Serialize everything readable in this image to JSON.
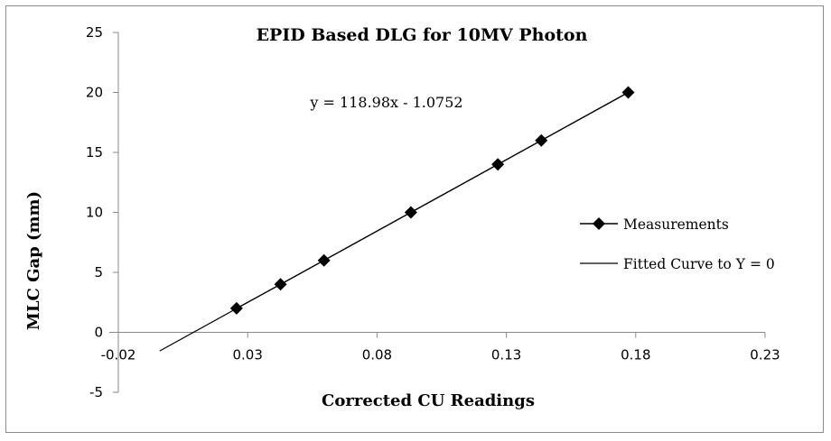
{
  "chart_data": {
    "type": "scatter",
    "title": "EPID Based DLG for 10MV Photon",
    "xlabel": "Corrected CU Readings",
    "ylabel": "MLC Gap (mm)",
    "xlim": [
      -0.02,
      0.23
    ],
    "ylim": [
      -5,
      25
    ],
    "x_ticks": [
      -0.02,
      0.03,
      0.08,
      0.13,
      0.18,
      0.23
    ],
    "x_tick_labels": [
      "-0.02",
      "0.03",
      "0.08",
      "0.13",
      "0.18",
      "0.23"
    ],
    "y_ticks": [
      -5,
      0,
      5,
      10,
      15,
      20,
      25
    ],
    "y_tick_labels": [
      "-5",
      "0",
      "5",
      "10",
      "15",
      "20",
      "25"
    ],
    "grid": false,
    "legend_position": "right",
    "series": [
      {
        "name": "Measurements",
        "marker": "diamond",
        "color": "#000000",
        "x": [
          0.0257,
          0.0427,
          0.0595,
          0.0931,
          0.1267,
          0.1435,
          0.1771
        ],
        "y": [
          2,
          4,
          6,
          10,
          14,
          16,
          20
        ]
      },
      {
        "name": "Fitted Curve to Y = 0",
        "type": "line",
        "color": "#000000",
        "slope": 118.98,
        "intercept": -1.0752,
        "x_range": [
          -0.004,
          0.177
        ]
      }
    ],
    "annotations": [
      {
        "text": "y = 118.98x - 1.0752"
      }
    ]
  }
}
